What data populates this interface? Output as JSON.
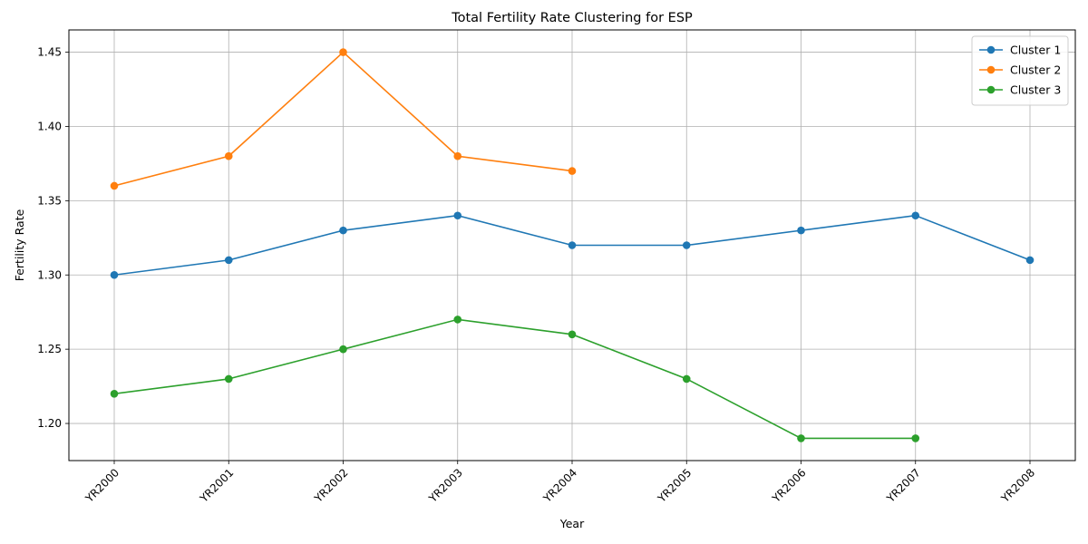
{
  "chart_data": {
    "type": "line",
    "title": "Total Fertility Rate Clustering for ESP",
    "xlabel": "Year",
    "ylabel": "Fertility Rate",
    "categories": [
      "YR2000",
      "YR2001",
      "YR2002",
      "YR2003",
      "YR2004",
      "YR2005",
      "YR2006",
      "YR2007",
      "YR2008"
    ],
    "ylim": [
      1.175,
      1.465
    ],
    "yticks": [
      1.2,
      1.25,
      1.3,
      1.35,
      1.4,
      1.45
    ],
    "ytick_labels": [
      "1.20",
      "1.25",
      "1.30",
      "1.35",
      "1.40",
      "1.45"
    ],
    "grid": true,
    "legend_position": "top-right",
    "series": [
      {
        "name": "Cluster 1",
        "color": "#1f77b4",
        "values": [
          1.3,
          1.31,
          1.33,
          1.34,
          1.32,
          1.32,
          1.33,
          1.34,
          1.31
        ]
      },
      {
        "name": "Cluster 2",
        "color": "#ff7f0e",
        "values": [
          1.36,
          1.38,
          1.45,
          1.38,
          1.37,
          null,
          null,
          null,
          null
        ]
      },
      {
        "name": "Cluster 3",
        "color": "#2ca02c",
        "values": [
          1.22,
          1.23,
          1.25,
          1.27,
          1.26,
          1.23,
          1.19,
          1.19,
          null
        ]
      }
    ]
  }
}
